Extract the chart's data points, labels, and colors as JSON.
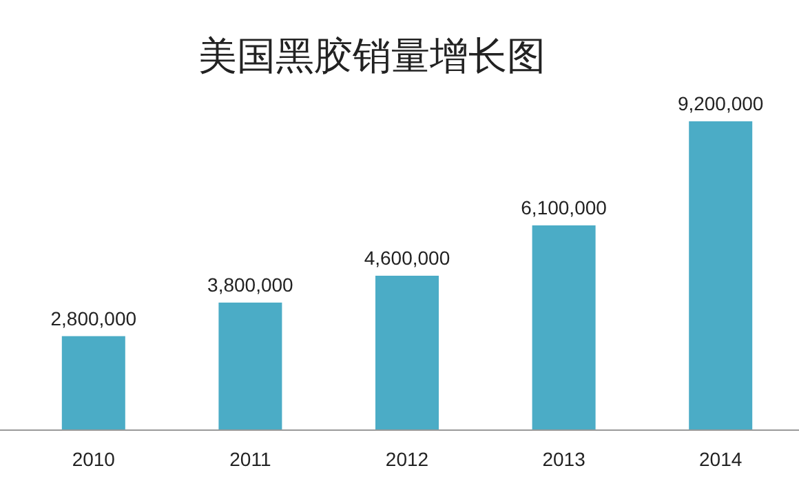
{
  "chart_data": {
    "type": "bar",
    "title": "美国黑胶销量增长图",
    "categories": [
      "2010",
      "2011",
      "2012",
      "2013",
      "2014"
    ],
    "values": [
      2800000,
      3800000,
      4600000,
      6100000,
      9200000
    ],
    "value_labels": [
      "2,800,000",
      "3,800,000",
      "4,600,000",
      "6,100,000",
      "9,200,000"
    ],
    "color": "#4bacc6"
  }
}
